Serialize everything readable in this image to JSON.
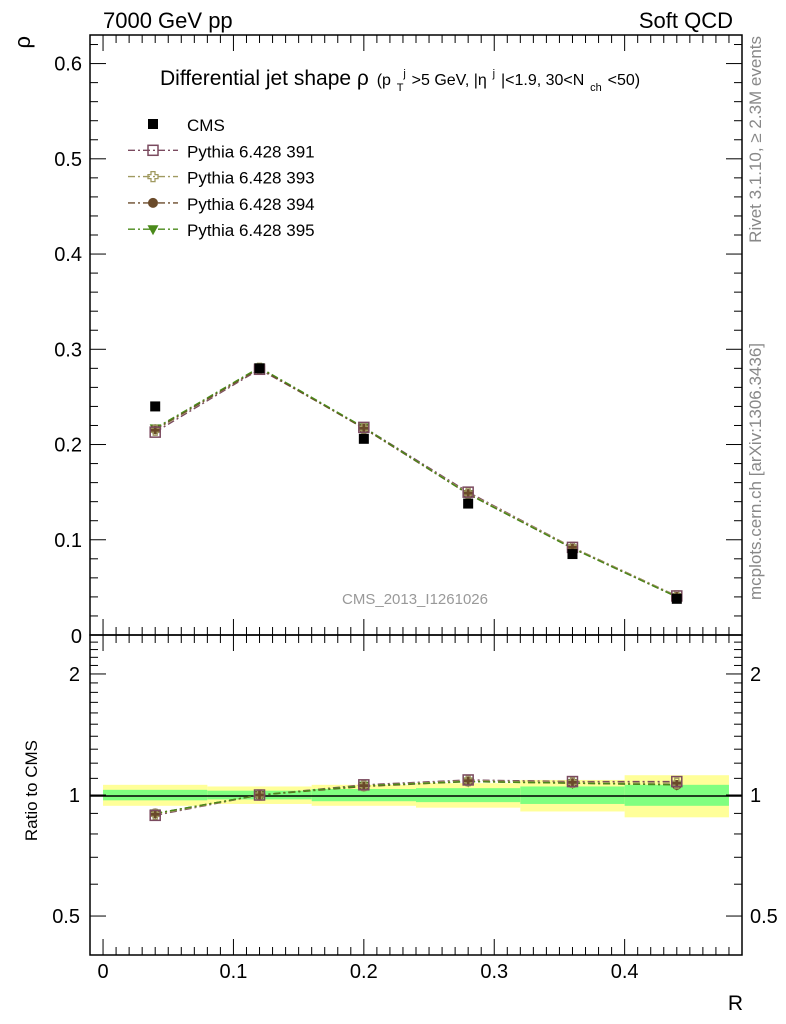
{
  "header": {
    "left": "7000 GeV pp",
    "right": "Soft QCD"
  },
  "side_labels": {
    "rivet": "Rivet 3.1.10, ≥ 2.3M events",
    "mcplots": "mcplots.cern.ch [arXiv:1306.3436]"
  },
  "chart_data": [
    {
      "type": "scatter",
      "panel": "main",
      "title_main": "Differential jet shape ρ",
      "title_cut": "(p",
      "title_cut_sub": "T",
      "title_cut_sup": "j",
      "title_cut_2": ">5 GeV, |η",
      "title_cut_2_sup": "j",
      "title_cut_3": "|<1.9, 30<N",
      "title_cut_3_sub": "ch",
      "title_cut_4": "<50)",
      "ylabel": "ρ",
      "xlabel": "R",
      "watermark": "CMS_2013_I1261026",
      "xlim": [
        -0.01,
        0.49
      ],
      "ylim": [
        0,
        0.63
      ],
      "yticks": [
        0.1,
        0.2,
        0.3,
        0.4,
        0.5,
        0.6
      ],
      "ytick_labels": [
        "0.1",
        "0.2",
        "0.3",
        "0.4",
        "0.5",
        "0.6"
      ],
      "ytick_zero_label": "0",
      "x": [
        0.04,
        0.12,
        0.2,
        0.28,
        0.36,
        0.44
      ],
      "series": [
        {
          "name": "CMS",
          "marker": "square-filled",
          "color": "#000000",
          "line": false,
          "values": [
            0.24,
            0.28,
            0.206,
            0.138,
            0.085,
            0.038
          ]
        },
        {
          "name": "Pythia 6.428 391",
          "marker": "square-open",
          "color": "#7a4a5f",
          "line": "dashdot",
          "values": [
            0.213,
            0.279,
            0.218,
            0.15,
            0.092,
            0.041
          ]
        },
        {
          "name": "Pythia 6.428 393",
          "marker": "cross-open",
          "color": "#a09a60",
          "line": "dashdot",
          "values": [
            0.215,
            0.28,
            0.217,
            0.149,
            0.092,
            0.041
          ]
        },
        {
          "name": "Pythia 6.428 394",
          "marker": "circle-filled",
          "color": "#6a4a2a",
          "line": "dashdot",
          "values": [
            0.216,
            0.28,
            0.217,
            0.148,
            0.091,
            0.04
          ]
        },
        {
          "name": "Pythia 6.428 395",
          "marker": "triangle-down-filled",
          "color": "#4a8a1a",
          "line": "dashdot",
          "values": [
            0.217,
            0.281,
            0.218,
            0.148,
            0.091,
            0.04
          ]
        }
      ]
    },
    {
      "type": "scatter",
      "panel": "ratio",
      "ylabel": "Ratio to CMS",
      "xlabel": "R",
      "yscale": "log",
      "ylim": [
        0.4,
        2.5
      ],
      "yticks": [
        0.5,
        1,
        2
      ],
      "ytick_labels": [
        "0.5",
        "1",
        "2"
      ],
      "xticks": [
        0,
        0.1,
        0.2,
        0.3,
        0.4
      ],
      "xtick_labels": [
        "0",
        "0.1",
        "0.2",
        "0.3",
        "0.4"
      ],
      "bins": [
        [
          -0.0,
          0.08
        ],
        [
          0.08,
          0.16
        ],
        [
          0.16,
          0.24
        ],
        [
          0.24,
          0.32
        ],
        [
          0.32,
          0.4
        ],
        [
          0.4,
          0.48
        ]
      ],
      "band_green": [
        0.03,
        0.025,
        0.035,
        0.04,
        0.05,
        0.06
      ],
      "band_yellow": [
        0.06,
        0.05,
        0.06,
        0.07,
        0.09,
        0.12
      ],
      "colors": {
        "band_green": "#80ff80",
        "band_yellow": "#ffff99"
      },
      "x": [
        0.04,
        0.12,
        0.2,
        0.28,
        0.36,
        0.44
      ],
      "series": [
        {
          "name": "Pythia 6.428 391",
          "marker": "square-open",
          "color": "#7a4a5f",
          "values": [
            0.89,
            1.0,
            1.06,
            1.09,
            1.08,
            1.08
          ]
        },
        {
          "name": "Pythia 6.428 393",
          "marker": "cross-open",
          "color": "#a09a60",
          "values": [
            0.895,
            1.0,
            1.055,
            1.085,
            1.075,
            1.07
          ]
        },
        {
          "name": "Pythia 6.428 394",
          "marker": "circle-filled",
          "color": "#6a4a2a",
          "values": [
            0.9,
            1.0,
            1.05,
            1.08,
            1.07,
            1.06
          ]
        },
        {
          "name": "Pythia 6.428 395",
          "marker": "triangle-down-filled",
          "color": "#4a8a1a",
          "values": [
            0.9,
            1.0,
            1.055,
            1.08,
            1.07,
            1.06
          ]
        }
      ]
    }
  ]
}
